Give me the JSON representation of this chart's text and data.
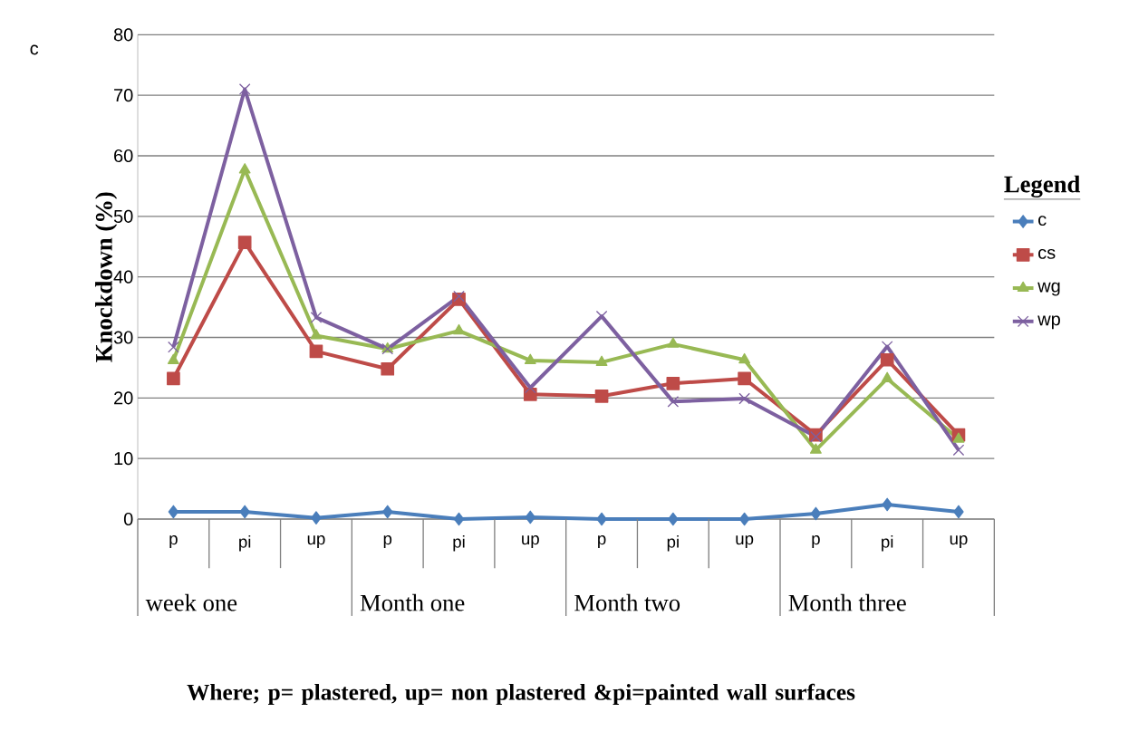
{
  "chart_data": {
    "type": "line",
    "ylabel": "Knockdown (%)",
    "legend_title": "Legend",
    "categories": [
      "p",
      "pi",
      "up",
      "p",
      "pi",
      "up",
      "p",
      "pi",
      "up",
      "p",
      "pi",
      "up"
    ],
    "series": [
      {
        "name": "c",
        "color": "#4a7ebb",
        "marker": "diamond",
        "values": [
          1.2,
          1.2,
          0.2,
          1.2,
          0,
          0.3,
          0,
          0,
          0,
          0.9,
          2.4,
          1.2
        ]
      },
      {
        "name": "cs",
        "color": "#be4b48",
        "marker": "square",
        "values": [
          23.2,
          45.7,
          27.7,
          24.8,
          36.3,
          20.6,
          20.3,
          22.4,
          23.2,
          13.9,
          26.3,
          13.9
        ]
      },
      {
        "name": "wg",
        "color": "#98b954",
        "marker": "triangle",
        "values": [
          26.2,
          57.7,
          30.3,
          28.1,
          31.1,
          26.2,
          25.9,
          28.9,
          26.3,
          11.4,
          23.2,
          13.2
        ]
      },
      {
        "name": "wp",
        "color": "#7d60a0",
        "marker": "cross",
        "values": [
          28.4,
          71,
          33.3,
          28.1,
          36.8,
          21.7,
          33.5,
          19.4,
          19.9,
          13.6,
          28.5,
          11.4
        ]
      }
    ],
    "ylim": [
      0,
      80
    ],
    "yticks": [
      0,
      10,
      20,
      30,
      40,
      50,
      60,
      70,
      80
    ],
    "grid": "y",
    "legend": "right",
    "annotations": [
      "c",
      "week one",
      "Month one",
      "Month two",
      "Month three",
      "Where; p= plastered, up= non plastered &pi=painted wall surfaces"
    ]
  }
}
